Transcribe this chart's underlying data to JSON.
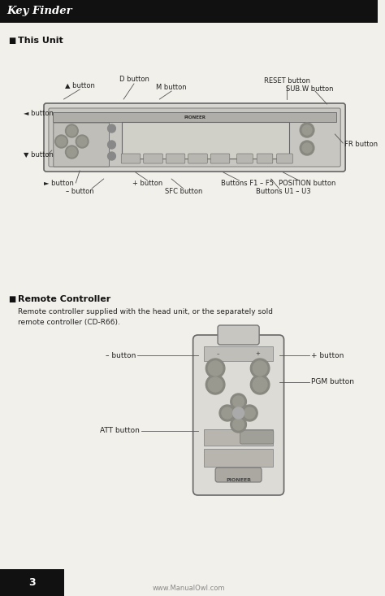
{
  "bg_color": "#f2f0eb",
  "header_bg": "#111111",
  "header_text": "Key Finder",
  "header_text_color": "#ffffff",
  "section1_title": "This Unit",
  "section2_title": "Remote Controller",
  "section2_body1": "Remote controller supplied with the head unit, or the separately sold",
  "section2_body2": "remote controller (CD-R66).",
  "footer_text": "www.ManualOwl.com",
  "page_number": "3"
}
